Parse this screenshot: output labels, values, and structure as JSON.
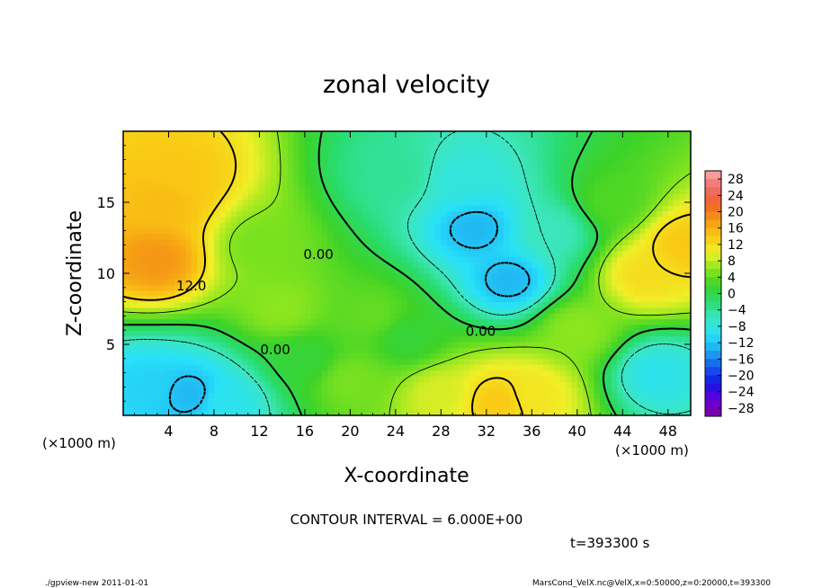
{
  "chart_data": {
    "type": "heatmap",
    "title": "zonal velocity",
    "xlabel": "X-coordinate",
    "ylabel": "Z-coordinate",
    "x_unit": "(×1000 m)",
    "y_unit": "(×1000 m)",
    "xlim": [
      0,
      50
    ],
    "ylim": [
      0,
      20
    ],
    "x_ticks": [
      4,
      8,
      12,
      16,
      20,
      24,
      28,
      32,
      36,
      40,
      44,
      48
    ],
    "y_ticks": [
      5,
      10,
      15
    ],
    "contour_interval_text": "CONTOUR INTERVAL = 6.000E+00",
    "time_text": "t=393300 s",
    "contour_labels": [
      {
        "text": "12.0",
        "x": 6.0,
        "y": 8.8
      },
      {
        "text": "0.00",
        "x": 17.2,
        "y": 11.0
      },
      {
        "text": "0.00",
        "x": 13.4,
        "y": 4.3
      },
      {
        "text": "0.00",
        "x": 31.5,
        "y": 5.6
      }
    ],
    "colorbar": {
      "ticks": [
        28,
        24,
        20,
        16,
        12,
        8,
        4,
        0,
        -4,
        -8,
        -12,
        -16,
        -20,
        -24,
        -28
      ],
      "tick_labels": [
        "28",
        "24",
        "20",
        "16",
        "12",
        "8",
        "4",
        "0",
        "−4",
        "−8",
        "−12",
        "−16",
        "−20",
        "−24",
        "−28"
      ],
      "range": [
        -30,
        30
      ]
    },
    "features": [
      {
        "x": 3.5,
        "y": 15.0,
        "value": 15
      },
      {
        "x": 3.0,
        "y": 11.0,
        "value": 18
      },
      {
        "x": 5.0,
        "y": 17.0,
        "value": 14
      },
      {
        "x": 2.0,
        "y": 2.0,
        "value": -11
      },
      {
        "x": 6.0,
        "y": 1.5,
        "value": -13
      },
      {
        "x": 9.0,
        "y": 1.0,
        "value": -9
      },
      {
        "x": 31.0,
        "y": 13.2,
        "value": -13
      },
      {
        "x": 34.0,
        "y": 9.5,
        "value": -13
      },
      {
        "x": 30.0,
        "y": 16.5,
        "value": -8
      },
      {
        "x": 24.0,
        "y": 17.0,
        "value": -4
      },
      {
        "x": 33.0,
        "y": 1.0,
        "value": 14
      },
      {
        "x": 36.0,
        "y": 1.5,
        "value": 11
      },
      {
        "x": 28.0,
        "y": 1.5,
        "value": 9
      },
      {
        "x": 20.0,
        "y": 2.5,
        "value": 5
      },
      {
        "x": 46.0,
        "y": 10.0,
        "value": 12
      },
      {
        "x": 49.5,
        "y": 12.0,
        "value": 14
      },
      {
        "x": 47.0,
        "y": 3.0,
        "value": -9
      },
      {
        "x": 43.0,
        "y": 15.0,
        "value": 3
      },
      {
        "x": 14.0,
        "y": 7.5,
        "value": 6
      },
      {
        "x": 12.0,
        "y": 12.0,
        "value": 5
      },
      {
        "x": 22.0,
        "y": 7.0,
        "value": 4
      },
      {
        "x": 40.0,
        "y": 6.0,
        "value": 6
      },
      {
        "x": 16.0,
        "y": 4.0,
        "value": 1
      },
      {
        "x": 25.0,
        "y": 5.5,
        "value": 1
      },
      {
        "x": 38.0,
        "y": 13.0,
        "value": -6
      }
    ]
  },
  "footer": {
    "left": "./gpview-new  2011-01-01",
    "right": "MarsCond_VelX.nc@VelX,x=0:50000,z=0:20000,t=393300"
  }
}
